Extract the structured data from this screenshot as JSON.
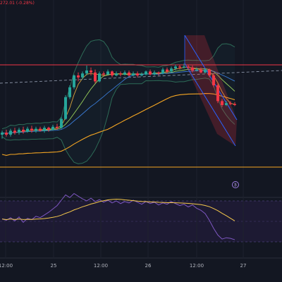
{
  "header": {
    "price_change": "272.01 (-0.28%)"
  },
  "event_badge": {
    "symbol": "₿"
  },
  "colors": {
    "background": "#131722",
    "up": "#26a69a",
    "down": "#f23645",
    "bollinger": "#2d6b57",
    "rsi_line": "#7e57c2",
    "rsi_ma": "#f5c84c",
    "rsi_band_fill": "#1d1a33",
    "channel": "#2962ff",
    "hline_red": "#f23645",
    "hline_orange": "#f5a623"
  },
  "chart_data": {
    "type": "candlestick",
    "x_tick_labels": [
      "12:00",
      "25",
      "12:00",
      "26",
      "12:00",
      "27"
    ],
    "candles": [
      [
        0.1,
        0.12,
        0.06,
        0.14
      ],
      [
        0.12,
        0.1,
        0.08,
        0.15
      ],
      [
        0.1,
        0.14,
        0.08,
        0.16
      ],
      [
        0.14,
        0.12,
        0.1,
        0.17
      ],
      [
        0.12,
        0.15,
        0.1,
        0.17
      ],
      [
        0.15,
        0.13,
        0.11,
        0.18
      ],
      [
        0.13,
        0.16,
        0.12,
        0.18
      ],
      [
        0.16,
        0.14,
        0.12,
        0.19
      ],
      [
        0.14,
        0.16,
        0.12,
        0.18
      ],
      [
        0.16,
        0.14,
        0.13,
        0.18
      ],
      [
        0.14,
        0.17,
        0.12,
        0.19
      ],
      [
        0.17,
        0.15,
        0.13,
        0.18
      ],
      [
        0.15,
        0.18,
        0.14,
        0.2
      ],
      [
        0.18,
        0.17,
        0.15,
        0.21
      ],
      [
        0.17,
        0.26,
        0.16,
        0.28
      ],
      [
        0.26,
        0.48,
        0.25,
        0.5
      ],
      [
        0.48,
        0.58,
        0.46,
        0.6
      ],
      [
        0.58,
        0.7,
        0.56,
        0.71
      ],
      [
        0.7,
        0.68,
        0.64,
        0.73
      ],
      [
        0.68,
        0.72,
        0.66,
        0.74
      ],
      [
        0.72,
        0.75,
        0.7,
        0.8
      ],
      [
        0.75,
        0.73,
        0.7,
        0.78
      ],
      [
        0.73,
        0.64,
        0.62,
        0.76
      ],
      [
        0.64,
        0.72,
        0.63,
        0.74
      ],
      [
        0.72,
        0.71,
        0.69,
        0.74
      ],
      [
        0.71,
        0.74,
        0.7,
        0.76
      ],
      [
        0.74,
        0.7,
        0.68,
        0.75
      ],
      [
        0.7,
        0.72,
        0.69,
        0.74
      ],
      [
        0.72,
        0.71,
        0.69,
        0.74
      ],
      [
        0.71,
        0.73,
        0.7,
        0.75
      ],
      [
        0.73,
        0.7,
        0.69,
        0.75
      ],
      [
        0.7,
        0.72,
        0.69,
        0.74
      ],
      [
        0.72,
        0.7,
        0.68,
        0.74
      ],
      [
        0.7,
        0.71,
        0.69,
        0.73
      ],
      [
        0.71,
        0.74,
        0.7,
        0.75
      ],
      [
        0.74,
        0.71,
        0.7,
        0.76
      ],
      [
        0.71,
        0.73,
        0.7,
        0.75
      ],
      [
        0.73,
        0.72,
        0.7,
        0.74
      ],
      [
        0.72,
        0.76,
        0.71,
        0.78
      ],
      [
        0.76,
        0.74,
        0.72,
        0.78
      ],
      [
        0.74,
        0.77,
        0.73,
        0.79
      ],
      [
        0.77,
        0.79,
        0.75,
        0.81
      ],
      [
        0.79,
        0.78,
        0.76,
        0.81
      ],
      [
        0.78,
        0.79,
        0.77,
        0.82
      ],
      [
        0.79,
        0.78,
        0.76,
        0.81
      ],
      [
        0.78,
        0.75,
        0.73,
        0.8
      ],
      [
        0.75,
        0.76,
        0.74,
        0.78
      ],
      [
        0.76,
        0.73,
        0.72,
        0.78
      ],
      [
        0.73,
        0.76,
        0.72,
        0.77
      ],
      [
        0.76,
        0.7,
        0.68,
        0.77
      ],
      [
        0.7,
        0.6,
        0.58,
        0.72
      ],
      [
        0.6,
        0.44,
        0.42,
        0.62
      ],
      [
        0.44,
        0.4,
        0.38,
        0.46
      ],
      [
        0.4,
        0.42,
        0.39,
        0.44
      ],
      [
        0.42,
        0.41,
        0.4,
        0.44
      ],
      [
        0.41,
        0.4,
        0.39,
        0.43
      ]
    ],
    "rsi": [
      52,
      50,
      54,
      49,
      55,
      47,
      53,
      51,
      56,
      54,
      58,
      62,
      67,
      72,
      80,
      88,
      84,
      90,
      86,
      82,
      79,
      83,
      78,
      81,
      77,
      80,
      76,
      79,
      75,
      78,
      76,
      80,
      77,
      74,
      78,
      75,
      77,
      73,
      76,
      74,
      78,
      75,
      72,
      74,
      70,
      73,
      68,
      65,
      60,
      50,
      38,
      28,
      22,
      24,
      23,
      21
    ]
  }
}
